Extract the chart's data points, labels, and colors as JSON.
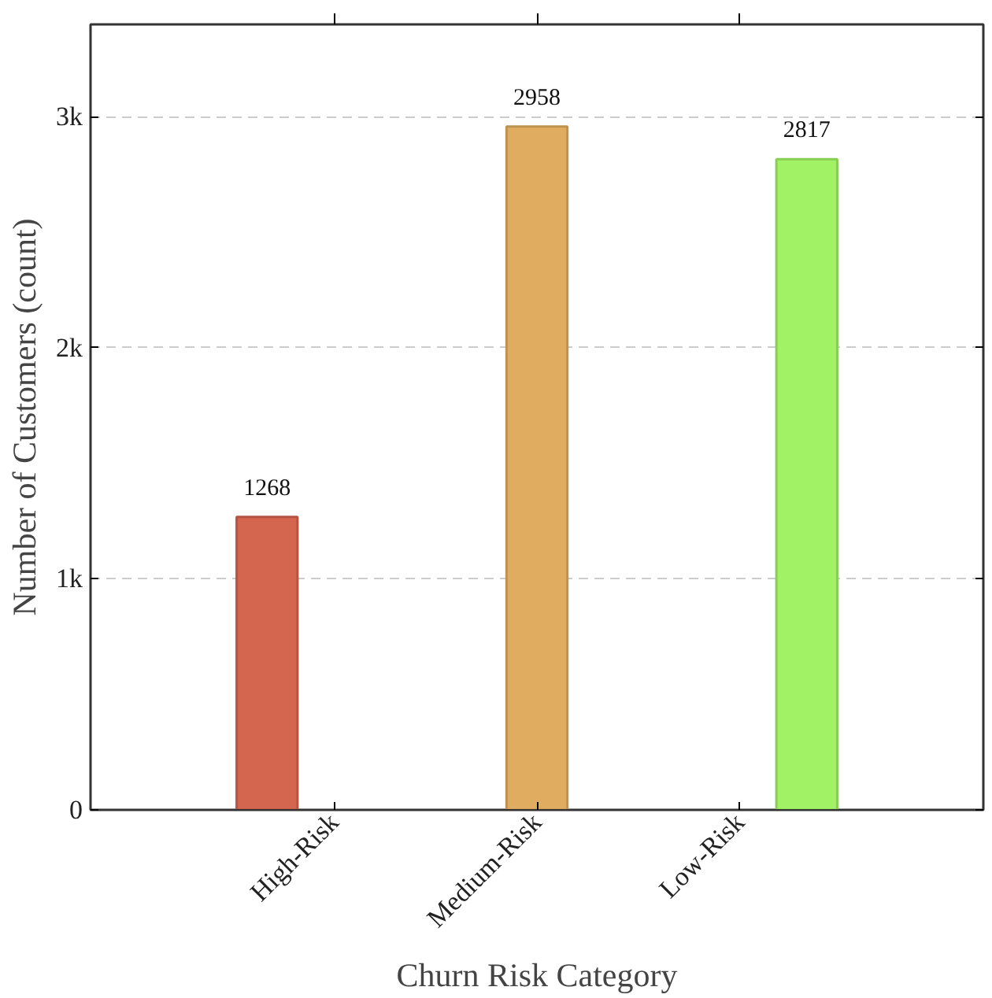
{
  "chart_data": {
    "type": "bar",
    "xlabel": "Churn Risk Category",
    "ylabel": "Number of Customers (count)",
    "categories": [
      "High-Risk",
      "Medium-Risk",
      "Low-Risk"
    ],
    "series": [
      {
        "color": "#d4654f",
        "values": [
          1268,
          null,
          null
        ]
      },
      {
        "color": "#e0ad60",
        "values": [
          null,
          2958,
          null
        ]
      },
      {
        "color": "#a2f265",
        "values": [
          null,
          null,
          2817
        ]
      }
    ],
    "ylim": [
      0,
      3400
    ],
    "yticks": [
      0,
      {
        "value": 1000,
        "label": "1k"
      },
      {
        "value": 2000,
        "label": "2k"
      },
      {
        "value": 3000,
        "label": "3k"
      }
    ],
    "grid": "y",
    "data_labels": true
  }
}
